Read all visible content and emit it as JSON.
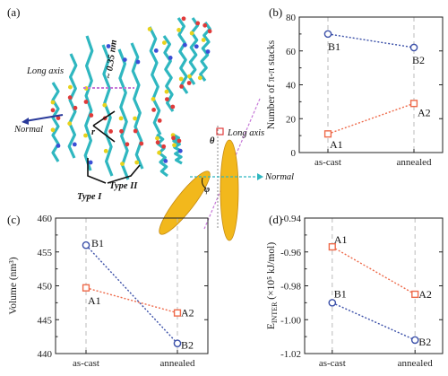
{
  "panel_a": {
    "label": "(a)",
    "long_axis": "Long axis",
    "normal": "Normal",
    "distance": "~ 0.35 nm",
    "r_label": "r",
    "type1": "Type I",
    "type2": "Type II",
    "theta": "θ",
    "phi": "φ",
    "inset_long_axis": "Long axis",
    "inset_normal": "Normal",
    "colors": {
      "carbon": "#2fb7c0",
      "sulfur": "#e8d21c",
      "oxygen": "#e03a3a",
      "nitrogen": "#3a4fd6",
      "ellipse": "#f2b81c",
      "arrow": "#2a3a9a"
    }
  },
  "chart_data": [
    {
      "panel": "(b)",
      "type": "line",
      "categories": [
        "as-cast",
        "annealed"
      ],
      "ylabel": "Number of π-π stacks",
      "ylim": [
        0,
        80
      ],
      "yticks": [
        "0",
        "20",
        "40",
        "60",
        "80"
      ],
      "series": [
        {
          "name": "B",
          "color": "#3a4fa8",
          "marker": "circle",
          "values": [
            70,
            62
          ],
          "labels": [
            "B1",
            "B2"
          ]
        },
        {
          "name": "A",
          "color": "#ee6a4a",
          "marker": "square",
          "values": [
            11,
            29
          ],
          "labels": [
            "A1",
            "A2"
          ]
        }
      ]
    },
    {
      "panel": "(c)",
      "type": "line",
      "categories": [
        "as-cast",
        "annealed"
      ],
      "ylabel": "Volume (nm³)",
      "ylim": [
        440,
        460
      ],
      "yticks": [
        "440",
        "445",
        "450",
        "455",
        "460"
      ],
      "series": [
        {
          "name": "B",
          "color": "#3a4fa8",
          "marker": "circle",
          "values": [
            456,
            441.5
          ],
          "labels": [
            "B1",
            "B2"
          ]
        },
        {
          "name": "A",
          "color": "#ee6a4a",
          "marker": "square",
          "values": [
            449.7,
            446
          ],
          "labels": [
            "A1",
            "A2"
          ]
        }
      ]
    },
    {
      "panel": "(d)",
      "type": "line",
      "categories": [
        "as-cast",
        "annealed"
      ],
      "ylabel": "E_INTER (×10⁵ kJ/mol)",
      "ylim": [
        -1.02,
        -0.94
      ],
      "yticks": [
        "-1.02",
        "-1.00",
        "-0.98",
        "-0.96",
        "-0.94"
      ],
      "series": [
        {
          "name": "A",
          "color": "#ee6a4a",
          "marker": "square",
          "values": [
            -0.957,
            -0.985
          ],
          "labels": [
            "A1",
            "A2"
          ]
        },
        {
          "name": "B",
          "color": "#3a4fa8",
          "marker": "circle",
          "values": [
            -0.99,
            -1.012
          ],
          "labels": [
            "B1",
            "B2"
          ]
        }
      ]
    }
  ]
}
